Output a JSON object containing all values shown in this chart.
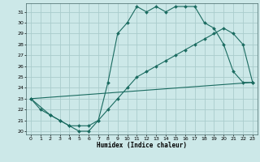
{
  "xlabel": "Humidex (Indice chaleur)",
  "background_color": "#cce8e8",
  "grid_color": "#aacccc",
  "line_color": "#1a6b60",
  "xlim": [
    -0.5,
    23.5
  ],
  "ylim": [
    19.7,
    31.8
  ],
  "xticks": [
    0,
    1,
    2,
    3,
    4,
    5,
    6,
    7,
    8,
    9,
    10,
    11,
    12,
    13,
    14,
    15,
    16,
    17,
    18,
    19,
    20,
    21,
    22,
    23
  ],
  "yticks": [
    20,
    21,
    22,
    23,
    24,
    25,
    26,
    27,
    28,
    29,
    30,
    31
  ],
  "line1_x": [
    0,
    1,
    2,
    3,
    4,
    5,
    6,
    7,
    8,
    9,
    10,
    11,
    12,
    13,
    14,
    15,
    16,
    17,
    18,
    19,
    20,
    21,
    22,
    23
  ],
  "line1_y": [
    23,
    22,
    21.5,
    21,
    20.5,
    20,
    20,
    21,
    24.5,
    29,
    30,
    31.5,
    31,
    31.5,
    31,
    31.5,
    31.5,
    31.5,
    30,
    29.5,
    28,
    25.5,
    24.5,
    24.5
  ],
  "line2_x": [
    0,
    2,
    3,
    4,
    5,
    6,
    7,
    8,
    9,
    10,
    11,
    12,
    13,
    14,
    15,
    16,
    17,
    18,
    19,
    20,
    21,
    22,
    23
  ],
  "line2_y": [
    23,
    21.5,
    21,
    20.5,
    20.5,
    20.5,
    21,
    22,
    23,
    24,
    25,
    25.5,
    26,
    26.5,
    27,
    27.5,
    28,
    28.5,
    29,
    29.5,
    29,
    28,
    24.5
  ],
  "line3_x": [
    0,
    23
  ],
  "line3_y": [
    23,
    24.5
  ]
}
